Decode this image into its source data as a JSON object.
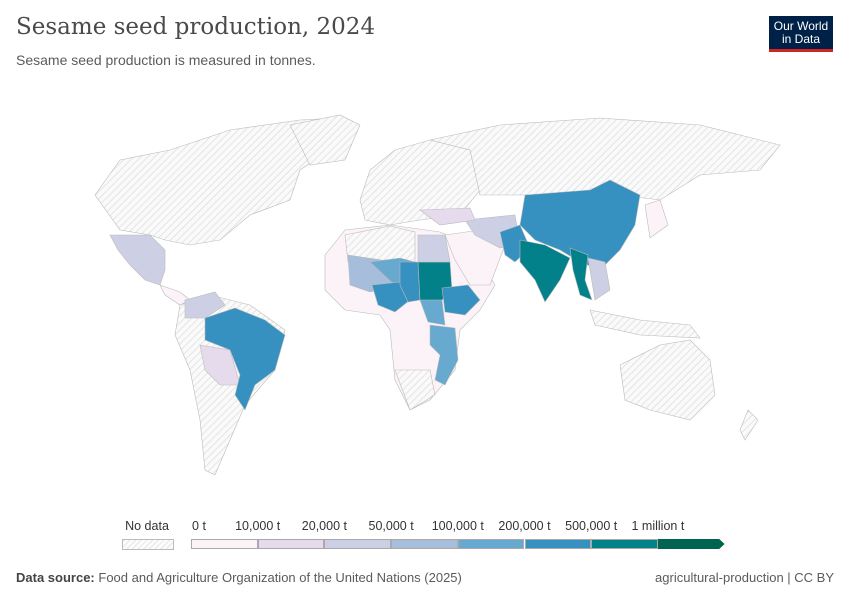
{
  "header": {
    "title": "Sesame seed production, 2024",
    "subtitle": "Sesame seed production is measured in tonnes.",
    "logo": "Our World in Data"
  },
  "legend": {
    "no_data_label": "No data",
    "ticks": [
      "0 t",
      "10,000 t",
      "20,000 t",
      "50,000 t",
      "100,000 t",
      "200,000 t",
      "500,000 t",
      "1 million t"
    ],
    "colors": [
      "#fbf3f8",
      "#e6dbec",
      "#cdd0e5",
      "#a6bddb",
      "#67a9cf",
      "#3690c0",
      "#02818a",
      "#016450"
    ],
    "no_data_color": "#eeeeee"
  },
  "footer": {
    "source_label": "Data source:",
    "source": "Food and Agriculture Organization of the United Nations (2025)",
    "right": "agricultural-production | CC BY"
  }
}
